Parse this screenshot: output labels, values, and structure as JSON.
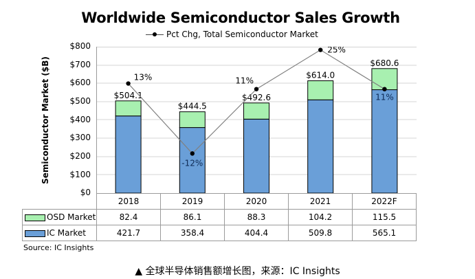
{
  "chart_data": {
    "type": "bar",
    "subtype": "stacked bar with line overlay and data table",
    "title": "Worldwide Semiconductor Sales Growth",
    "xlabel": "",
    "ylabel": "Semiconductor Market ($B)",
    "ylim": [
      0,
      800
    ],
    "yticks": [
      "$0",
      "$100",
      "$200",
      "$300",
      "$400",
      "$500",
      "$600",
      "$700",
      "$800"
    ],
    "grid": true,
    "categories": [
      "2018",
      "2019",
      "2020",
      "2021",
      "2022F"
    ],
    "series": [
      {
        "name": "IC Market",
        "type": "bar",
        "color": "#6a9fd8",
        "values": [
          421.7,
          358.4,
          404.4,
          509.8,
          565.1
        ]
      },
      {
        "name": "OSD Market",
        "type": "bar",
        "color": "#a8f0b0",
        "values": [
          82.4,
          86.1,
          88.3,
          104.2,
          115.5
        ]
      },
      {
        "name": "Pct Chg, Total Semiconductor Market",
        "type": "line",
        "color": "#808080",
        "values": [
          13,
          -12,
          11,
          25,
          11
        ],
        "value_labels": [
          "13%",
          "-12%",
          "11%",
          "25%",
          "11%"
        ]
      }
    ],
    "totals": [
      504.1,
      444.5,
      492.6,
      614.0,
      680.6
    ],
    "total_labels": [
      "$504.1",
      "$444.5",
      "$492.6",
      "$614.0",
      "$680.6"
    ],
    "legend": [
      "Pct Chg, Total Semiconductor Market"
    ],
    "legend_position": "top"
  },
  "header": {
    "title": "Worldwide Semiconductor Sales Growth",
    "legend_label": "Pct Chg, Total Semiconductor Market"
  },
  "axis": {
    "ylabel": "Semiconductor Market ($B)",
    "ticks": [
      "$800",
      "$700",
      "$600",
      "$500",
      "$400",
      "$300",
      "$200",
      "$100",
      "$0"
    ]
  },
  "table": {
    "years": [
      "2018",
      "2019",
      "2020",
      "2021",
      "2022F"
    ],
    "osd_label": "OSD Market",
    "ic_label": "IC Market",
    "osd": [
      "82.4",
      "86.1",
      "88.3",
      "104.2",
      "115.5"
    ],
    "ic": [
      "421.7",
      "358.4",
      "404.4",
      "509.8",
      "565.1"
    ]
  },
  "labels": {
    "totals": [
      "$504.1",
      "$444.5",
      "$492.6",
      "$614.0",
      "$680.6"
    ],
    "pct": [
      "13%",
      "-12%",
      "11%",
      "25%",
      "11%"
    ]
  },
  "footer": {
    "source": "Source: IC Insights",
    "caption": "▲ 全球半导体销售额增长图，来源：IC Insights"
  },
  "colors": {
    "ic": "#6a9fd8",
    "osd": "#a8f0b0",
    "line": "#808080",
    "grid": "#d4d4d4"
  }
}
